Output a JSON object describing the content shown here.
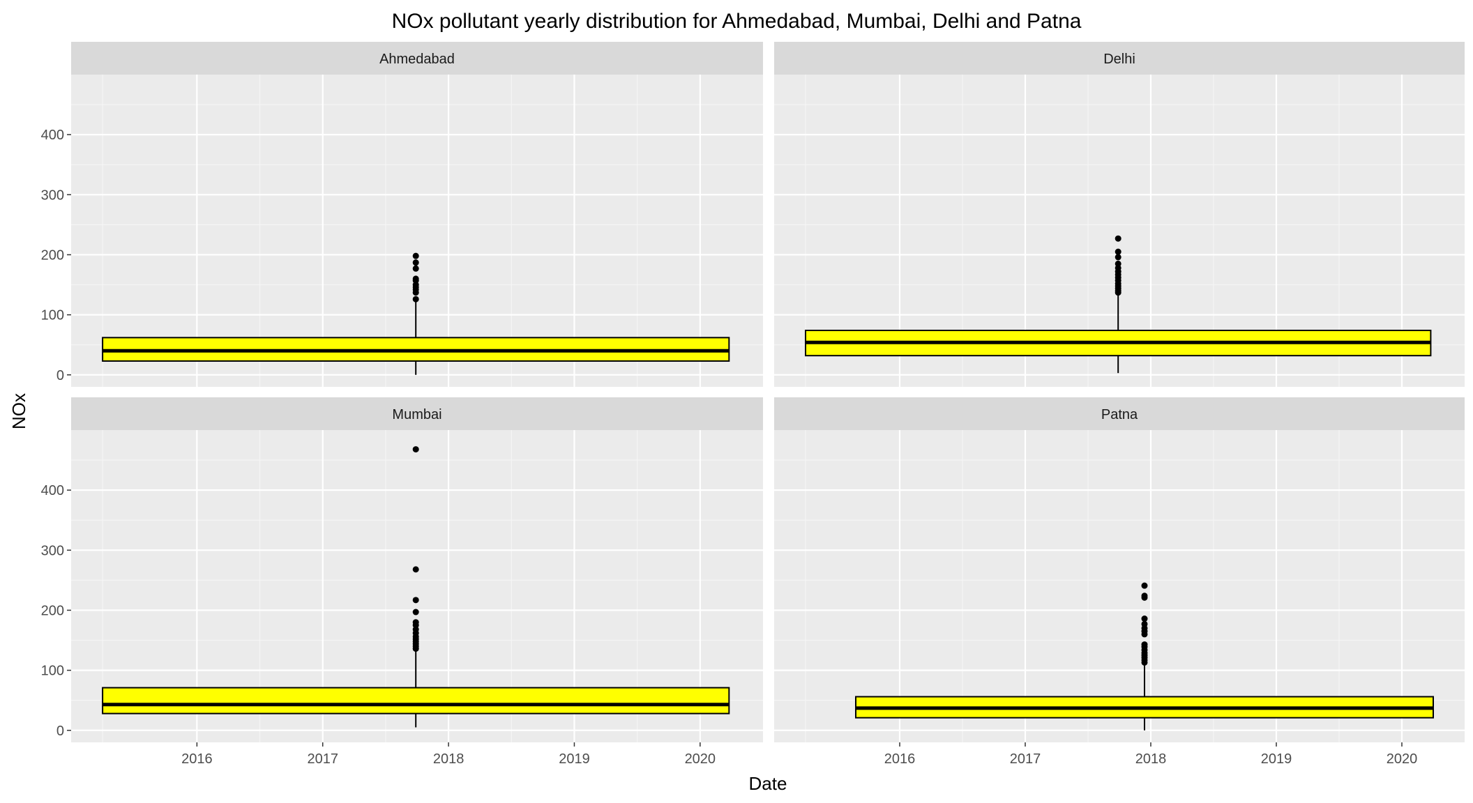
{
  "chart_data": {
    "type": "boxplot",
    "title": "NOx pollutant yearly distribution for Ahmedabad, Mumbai, Delhi and Patna",
    "xlabel": "Date",
    "ylabel": "NOx",
    "x_ticks": [
      2016,
      2017,
      2018,
      2019,
      2020
    ],
    "y_ticks": [
      0,
      100,
      200,
      300,
      400
    ],
    "xlim": [
      2015.0,
      2020.5
    ],
    "ylim": [
      -20,
      500
    ],
    "grid": true,
    "box_fill": "#ffff00",
    "panel_bg": "#ebebeb",
    "strip_bg": "#d9d9d9",
    "panels": [
      {
        "name": "Ahmedabad",
        "x_start": 2015.25,
        "x_end": 2020.23,
        "x_center": 2017.74,
        "min": 0,
        "q1": 23,
        "median": 40,
        "q3": 62,
        "whisker_high": 126,
        "outliers": [
          126,
          137,
          142,
          146,
          150,
          157,
          160,
          177,
          187,
          198
        ]
      },
      {
        "name": "Delhi",
        "x_start": 2015.25,
        "x_end": 2020.23,
        "x_center": 2017.74,
        "min": 3,
        "q1": 32,
        "median": 54,
        "q3": 74,
        "whisker_high": 137,
        "outliers": [
          137,
          140,
          144,
          148,
          152,
          157,
          162,
          167,
          172,
          178,
          185,
          196,
          205,
          227
        ]
      },
      {
        "name": "Mumbai",
        "x_start": 2015.25,
        "x_end": 2020.23,
        "x_center": 2017.74,
        "min": 5,
        "q1": 28,
        "median": 43,
        "q3": 71,
        "whisker_high": 136,
        "outliers": [
          136,
          140,
          144,
          148,
          152,
          156,
          162,
          168,
          175,
          180,
          197,
          217,
          268,
          468
        ]
      },
      {
        "name": "Patna",
        "x_start": 2015.65,
        "x_end": 2020.25,
        "x_center": 2017.95,
        "min": 0,
        "q1": 21,
        "median": 37,
        "q3": 56,
        "whisker_high": 113,
        "outliers": [
          113,
          117,
          121,
          125,
          129,
          134,
          139,
          143,
          160,
          165,
          170,
          177,
          186,
          221,
          224,
          241
        ]
      }
    ]
  }
}
